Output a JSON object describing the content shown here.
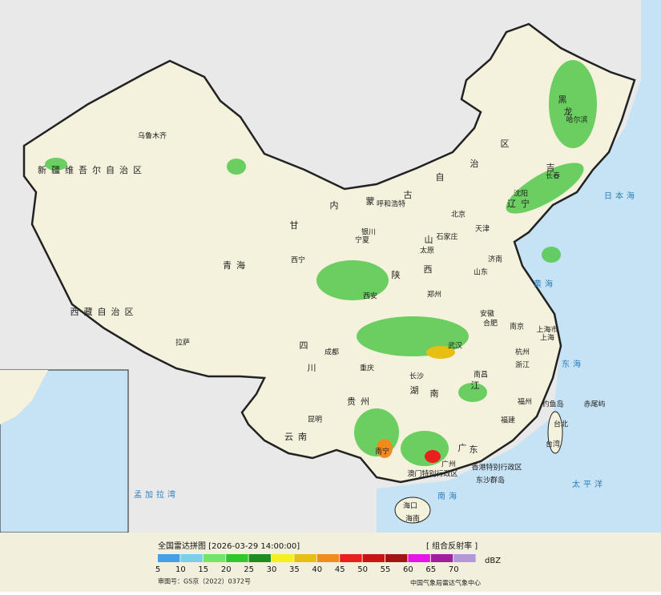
{
  "map": {
    "labels": [
      "乌鲁木齐",
      "新疆维吾尔自治区",
      "西藏自治区",
      "拉萨",
      "青海",
      "西宁",
      "甘",
      "内",
      "蒙",
      "古",
      "呼和浩特",
      "北京",
      "天津",
      "石家庄",
      "太原",
      "山",
      "西",
      "济南",
      "山东",
      "郑州",
      "西安",
      "陕",
      "南京",
      "上海市",
      "上海",
      "杭州",
      "浙江",
      "合肥",
      "安徽",
      "武汉",
      "湖",
      "南",
      "长沙",
      "南昌",
      "江",
      "福州",
      "福建",
      "广州",
      "广",
      "东",
      "南宁",
      "海口",
      "海南",
      "昆明",
      "云南",
      "贵州",
      "重庆",
      "成都",
      "四",
      "川",
      "黑",
      "龙",
      "哈尔滨",
      "长春",
      "吉",
      "沈阳",
      "辽宁",
      "台北",
      "台湾",
      "香港特别行政区",
      "澳门特别行政区",
      "东沙群岛",
      "钓鱼岛",
      "赤尾屿",
      "日本海",
      "黄海",
      "东海",
      "太平洋",
      "南海",
      "孟加拉湾",
      "银川",
      "宁夏",
      "治",
      "区",
      "自"
    ]
  },
  "legend": {
    "title": "全国雷达拼图 [2026-03-29 14:00:00]",
    "product": "[ 组合反射率 ]",
    "unit": "dBZ",
    "items": [
      {
        "value": 5,
        "color": "#46a0e6"
      },
      {
        "value": 10,
        "color": "#7ad0ec"
      },
      {
        "value": 15,
        "color": "#72e46a"
      },
      {
        "value": 20,
        "color": "#30c828"
      },
      {
        "value": 25,
        "color": "#1f8c22"
      },
      {
        "value": 30,
        "color": "#f5f020"
      },
      {
        "value": 35,
        "color": "#e6be14"
      },
      {
        "value": 40,
        "color": "#f08c1e"
      },
      {
        "value": 45,
        "color": "#ec1e1e"
      },
      {
        "value": 50,
        "color": "#c81414"
      },
      {
        "value": 55,
        "color": "#a01414"
      },
      {
        "value": 60,
        "color": "#e614e6"
      },
      {
        "value": 65,
        "color": "#a01ea0"
      },
      {
        "value": 70,
        "color": "#b496dc"
      }
    ]
  },
  "footer": {
    "approval": "审图号：GS京（2022）0372号",
    "agency": "中国气象局雷达气象中心"
  }
}
